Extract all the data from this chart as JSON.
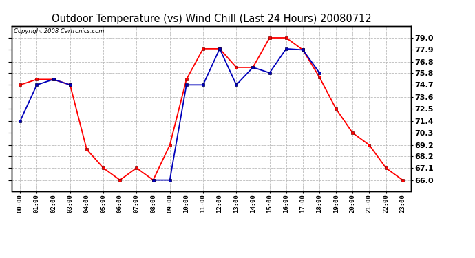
{
  "title": "Outdoor Temperature (vs) Wind Chill (Last 24 Hours) 20080712",
  "copyright": "Copyright 2008 Cartronics.com",
  "hours": [
    "00:00",
    "01:00",
    "02:00",
    "03:00",
    "04:00",
    "05:00",
    "06:00",
    "07:00",
    "08:00",
    "09:00",
    "10:00",
    "11:00",
    "12:00",
    "13:00",
    "14:00",
    "15:00",
    "16:00",
    "17:00",
    "18:00",
    "19:00",
    "20:00",
    "21:00",
    "22:00",
    "23:00"
  ],
  "temp_red": [
    74.7,
    75.2,
    75.2,
    74.7,
    68.8,
    67.1,
    66.0,
    67.1,
    66.0,
    69.2,
    75.2,
    78.0,
    78.0,
    76.3,
    76.3,
    79.0,
    79.0,
    77.9,
    75.4,
    72.5,
    70.3,
    69.2,
    67.1,
    66.0
  ],
  "temp_blue": [
    71.4,
    74.7,
    75.2,
    74.7,
    null,
    null,
    null,
    null,
    66.0,
    66.0,
    74.7,
    74.7,
    78.0,
    74.7,
    76.3,
    75.8,
    78.0,
    77.9,
    75.8,
    null,
    null,
    null,
    null,
    null
  ],
  "ylim_min": 65.0,
  "ylim_max": 80.1,
  "yticks": [
    66.0,
    67.1,
    68.2,
    69.2,
    70.3,
    71.4,
    72.5,
    73.6,
    74.7,
    75.8,
    76.8,
    77.9,
    79.0
  ],
  "background_color": "#ffffff",
  "grid_color": "#bbbbbb",
  "red_color": "#ff0000",
  "blue_color": "#0000bb",
  "title_color": "#000000",
  "title_fontsize": 10.5,
  "copyright_fontsize": 6.0
}
